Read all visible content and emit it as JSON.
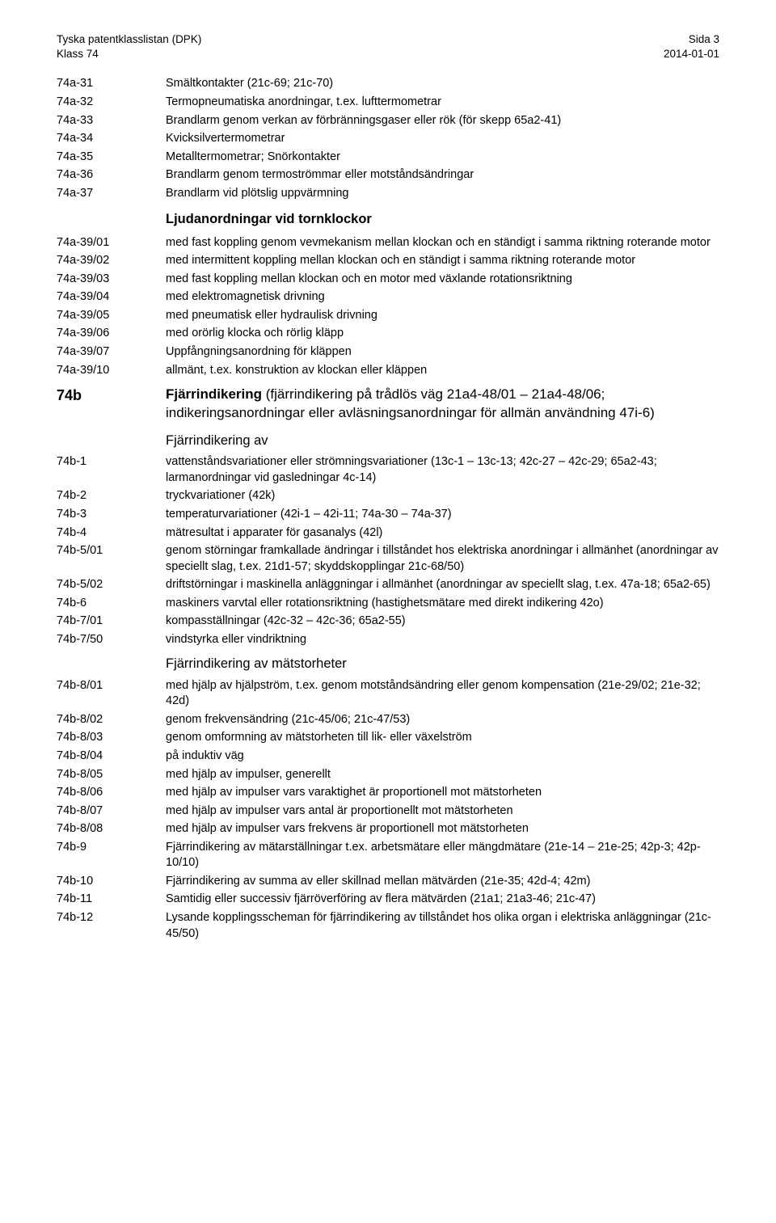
{
  "header": {
    "left1": "Tyska patentklasslistan (DPK)",
    "left2": "Klass 74",
    "right1": "Sida 3",
    "right2": "2014-01-01"
  },
  "rows": [
    {
      "code": "74a-31",
      "desc": "Smältkontakter (21c-69; 21c-70)"
    },
    {
      "code": "74a-32",
      "desc": "Termopneumatiska anordningar, t.ex. lufttermometrar"
    },
    {
      "code": "74a-33",
      "desc": "Brandlarm genom verkan av förbränningsgaser eller rök (för skepp 65a2-41)"
    },
    {
      "code": "74a-34",
      "desc": "Kvicksilvertermometrar"
    },
    {
      "code": "74a-35",
      "desc": "Metalltermometrar; Snörkontakter"
    },
    {
      "code": "74a-36",
      "desc": "Brandlarm genom termoströmmar eller motståndsändringar"
    },
    {
      "code": "74a-37",
      "desc": "Brandlarm vid plötslig uppvärmning"
    },
    {
      "type": "section",
      "text": "Ljudanordningar vid tornklockor"
    },
    {
      "code": "74a-39/01",
      "desc": "med fast koppling genom vevmekanism mellan klockan och en ständigt i samma riktning roterande motor"
    },
    {
      "code": "74a-39/02",
      "desc": "med intermittent koppling mellan klockan och en ständigt i samma riktning roterande motor"
    },
    {
      "code": "74a-39/03",
      "desc": "med fast koppling mellan klockan och en motor med växlande rotationsriktning"
    },
    {
      "code": "74a-39/04",
      "desc": "med elektromagnetisk drivning"
    },
    {
      "code": "74a-39/05",
      "desc": "med pneumatisk eller hydraulisk drivning"
    },
    {
      "code": "74a-39/06",
      "desc": "med orörlig klocka och rörlig kläpp"
    },
    {
      "code": "74a-39/07",
      "desc": "Uppfångningsanordning för kläppen"
    },
    {
      "code": "74a-39/10",
      "desc": "allmänt, t.ex. konstruktion av klockan eller kläppen"
    },
    {
      "type": "big",
      "code": "74b",
      "boldprefix": "Fjärrindikering",
      "bolddesc": " (fjärrindikering på trådlös väg 21a4-48/01 – 21a4-48/06; indikeringsanordningar eller avläsningsanordningar för allmän användning 47i-6)"
    },
    {
      "type": "sub",
      "text": "Fjärrindikering av"
    },
    {
      "code": "74b-1",
      "desc": "vattenståndsvariationer eller strömningsvariationer (13c-1 – 13c-13; 42c-27 – 42c-29; 65a2-43; larmanordningar vid gasledningar 4c-14)"
    },
    {
      "code": "74b-2",
      "desc": "tryckvariationer (42k)"
    },
    {
      "code": "74b-3",
      "desc": "temperaturvariationer (42i-1 – 42i-11; 74a-30 – 74a-37)"
    },
    {
      "code": "74b-4",
      "desc": "mätresultat i apparater för gasanalys (42l)"
    },
    {
      "code": "74b-5/01",
      "desc": "genom störningar framkallade ändringar i tillståndet hos elektriska anordningar i allmänhet (anordningar av speciellt slag, t.ex. 21d1-57; skyddskopplingar 21c-68/50)"
    },
    {
      "code": "74b-5/02",
      "desc": "driftstörningar i maskinella anläggningar i allmänhet (anordningar av speciellt slag, t.ex. 47a-18; 65a2-65)"
    },
    {
      "code": "74b-6",
      "desc": "maskiners varvtal eller rotationsriktning (hastighetsmätare med direkt indikering 42o)"
    },
    {
      "code": "74b-7/01",
      "desc": "kompasställningar (42c-32 – 42c-36; 65a2-55)"
    },
    {
      "code": "74b-7/50",
      "desc": "vindstyrka eller vindriktning"
    },
    {
      "type": "sub",
      "text": "Fjärrindikering av mätstorheter"
    },
    {
      "code": "74b-8/01",
      "desc": "med hjälp av hjälpström, t.ex. genom motståndsändring eller genom kompensation (21e-29/02; 21e-32; 42d)"
    },
    {
      "code": "74b-8/02",
      "desc": "genom frekvensändring (21c-45/06; 21c-47/53)"
    },
    {
      "code": "74b-8/03",
      "desc": "genom omformning av mätstorheten till lik- eller växelström"
    },
    {
      "code": "74b-8/04",
      "desc": "på induktiv väg"
    },
    {
      "code": "74b-8/05",
      "desc": "med hjälp av impulser, generellt"
    },
    {
      "code": "74b-8/06",
      "desc": "med hjälp av impulser vars varaktighet är proportionell mot mätstorheten"
    },
    {
      "code": "74b-8/07",
      "desc": "med hjälp av impulser vars antal är proportionellt mot mätstorheten"
    },
    {
      "code": "74b-8/08",
      "desc": "med hjälp av impulser vars frekvens är proportionell mot mätstorheten"
    },
    {
      "code": "74b-9",
      "desc": "Fjärrindikering av mätarställningar t.ex. arbetsmätare eller mängdmätare (21e-14 – 21e-25; 42p-3; 42p-10/10)"
    },
    {
      "code": "74b-10",
      "desc": "Fjärrindikering av summa av eller skillnad mellan mätvärden (21e-35; 42d-4; 42m)"
    },
    {
      "code": "74b-11",
      "desc": "Samtidig eller successiv fjärröverföring av flera mätvärden (21a1; 21a3-46; 21c-47)"
    },
    {
      "code": "74b-12",
      "desc": "Lysande kopplingsscheman för fjärrindikering av tillståndet hos olika organ i elektriska anläggningar (21c-45/50)"
    }
  ]
}
